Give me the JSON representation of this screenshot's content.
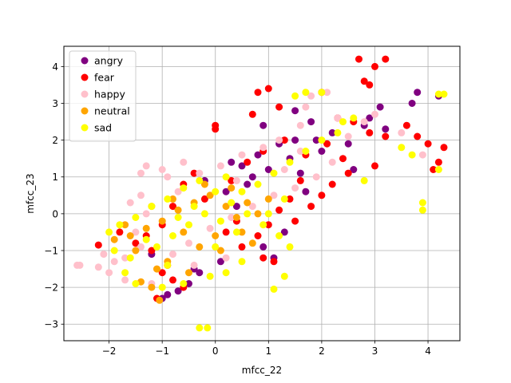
{
  "chart_data": {
    "type": "scatter",
    "title": "",
    "xlabel": "mfcc_22",
    "ylabel": "mfcc_23",
    "xlim": [
      -2.85,
      4.6
    ],
    "ylim": [
      -3.45,
      4.55
    ],
    "xticks": [
      -2,
      -1,
      0,
      1,
      2,
      3,
      4
    ],
    "yticks": [
      -3,
      -2,
      -1,
      0,
      1,
      2,
      3,
      4
    ],
    "grid": true,
    "legend_position": "upper-left",
    "series": [
      {
        "name": "angry",
        "color": "#800080",
        "points": [
          [
            2.8,
            2.4
          ],
          [
            3.1,
            2.9
          ],
          [
            3.8,
            3.3
          ],
          [
            4.2,
            3.2
          ],
          [
            3.7,
            3.0
          ],
          [
            2.9,
            2.6
          ],
          [
            1.5,
            2.8
          ],
          [
            1.8,
            2.5
          ],
          [
            2.2,
            2.2
          ],
          [
            1.2,
            1.9
          ],
          [
            0.8,
            1.6
          ],
          [
            0.5,
            1.3
          ],
          [
            1.0,
            1.2
          ],
          [
            1.4,
            1.5
          ],
          [
            0.6,
            0.8
          ],
          [
            0.2,
            0.6
          ],
          [
            1.6,
            1.1
          ],
          [
            2.0,
            1.7
          ],
          [
            2.5,
            1.9
          ],
          [
            3.2,
            2.3
          ],
          [
            -0.9,
            -2.2
          ],
          [
            -1.0,
            -2.3
          ],
          [
            -0.7,
            -2.1
          ],
          [
            -0.5,
            -1.9
          ],
          [
            -0.3,
            -1.6
          ],
          [
            0.1,
            -1.3
          ],
          [
            -1.2,
            -1.1
          ],
          [
            1.3,
            -0.5
          ],
          [
            0.9,
            -0.9
          ],
          [
            1.1,
            -1.2
          ],
          [
            0.7,
            1.0
          ],
          [
            0.3,
            1.4
          ],
          [
            -0.2,
            0.9
          ],
          [
            0.4,
            0.2
          ],
          [
            1.7,
            0.6
          ],
          [
            2.6,
            1.2
          ],
          [
            1.9,
            2.0
          ],
          [
            0.9,
            2.4
          ],
          [
            1.5,
            2.0
          ],
          [
            -0.4,
            -1.5
          ]
        ]
      },
      {
        "name": "fear",
        "color": "#ff0000",
        "points": [
          [
            2.7,
            4.2
          ],
          [
            3.2,
            4.2
          ],
          [
            3.0,
            4.0
          ],
          [
            2.8,
            3.6
          ],
          [
            2.9,
            3.5
          ],
          [
            1.0,
            3.4
          ],
          [
            0.8,
            3.3
          ],
          [
            0.7,
            2.7
          ],
          [
            1.2,
            2.9
          ],
          [
            2.0,
            3.3
          ],
          [
            2.3,
            2.6
          ],
          [
            2.6,
            2.5
          ],
          [
            2.9,
            2.2
          ],
          [
            3.2,
            2.1
          ],
          [
            3.6,
            2.4
          ],
          [
            3.8,
            2.1
          ],
          [
            4.0,
            1.9
          ],
          [
            4.2,
            1.4
          ],
          [
            4.3,
            1.8
          ],
          [
            4.1,
            1.2
          ],
          [
            3.0,
            1.3
          ],
          [
            2.5,
            1.1
          ],
          [
            2.2,
            0.8
          ],
          [
            2.0,
            0.5
          ],
          [
            1.8,
            0.2
          ],
          [
            1.6,
            0.9
          ],
          [
            1.4,
            0.4
          ],
          [
            1.2,
            0.1
          ],
          [
            1.0,
            -0.3
          ],
          [
            0.8,
            -0.6
          ],
          [
            1.1,
            -1.3
          ],
          [
            0.9,
            -1.2
          ],
          [
            0.5,
            -0.9
          ],
          [
            0.2,
            -0.5
          ],
          [
            0.0,
            2.4
          ],
          [
            0.0,
            2.3
          ],
          [
            -0.4,
            1.1
          ],
          [
            -0.6,
            0.8
          ],
          [
            -0.8,
            0.2
          ],
          [
            -1.0,
            -0.3
          ],
          [
            -1.3,
            -0.6
          ],
          [
            -1.5,
            -0.8
          ],
          [
            -2.2,
            -0.85
          ],
          [
            -1.8,
            -0.5
          ],
          [
            -1.2,
            -1.0
          ],
          [
            -1.0,
            -1.6
          ],
          [
            -0.8,
            -1.8
          ],
          [
            -0.6,
            -2.0
          ],
          [
            -1.1,
            -2.3
          ],
          [
            -0.9,
            -1.4
          ],
          [
            0.3,
            0.9
          ],
          [
            0.6,
            1.4
          ],
          [
            0.9,
            1.7
          ],
          [
            1.3,
            2.0
          ],
          [
            1.7,
            1.6
          ],
          [
            2.1,
            1.9
          ],
          [
            2.4,
            1.5
          ],
          [
            0.4,
            -0.2
          ],
          [
            -0.2,
            0.4
          ],
          [
            1.5,
            -0.2
          ]
        ]
      },
      {
        "name": "happy",
        "color": "#ffc0cb",
        "points": [
          [
            -2.55,
            -1.4
          ],
          [
            -2.6,
            -1.4
          ],
          [
            -2.2,
            -1.45
          ],
          [
            -2.0,
            -1.6
          ],
          [
            -1.9,
            -1.3
          ],
          [
            -2.1,
            -1.1
          ],
          [
            -1.7,
            -1.2
          ],
          [
            -1.4,
            -0.9
          ],
          [
            -1.5,
            -0.5
          ],
          [
            -1.6,
            0.3
          ],
          [
            -1.4,
            0.5
          ],
          [
            -1.3,
            0.0
          ],
          [
            -1.3,
            1.3
          ],
          [
            -1.4,
            1.1
          ],
          [
            -1.0,
            1.2
          ],
          [
            -0.9,
            1.0
          ],
          [
            -0.6,
            1.4
          ],
          [
            -0.3,
            1.1
          ],
          [
            0.1,
            1.3
          ],
          [
            0.5,
            1.6
          ],
          [
            0.9,
            1.8
          ],
          [
            1.2,
            2.0
          ],
          [
            1.6,
            2.4
          ],
          [
            1.8,
            3.2
          ],
          [
            1.7,
            2.9
          ],
          [
            2.1,
            3.3
          ],
          [
            2.3,
            2.6
          ],
          [
            2.5,
            2.1
          ],
          [
            2.8,
            2.5
          ],
          [
            3.0,
            2.7
          ],
          [
            3.5,
            2.2
          ],
          [
            3.9,
            1.6
          ],
          [
            2.2,
            1.4
          ],
          [
            1.9,
            1.0
          ],
          [
            1.5,
            0.7
          ],
          [
            1.1,
            0.5
          ],
          [
            0.7,
            0.2
          ],
          [
            0.3,
            -0.1
          ],
          [
            -0.1,
            -0.4
          ],
          [
            -0.5,
            -0.8
          ],
          [
            -0.8,
            -1.1
          ],
          [
            -1.1,
            -1.5
          ],
          [
            -1.2,
            -1.9
          ],
          [
            -1.7,
            -1.8
          ],
          [
            -0.4,
            -1.4
          ],
          [
            0.2,
            -1.2
          ],
          [
            1.3,
            1.2
          ],
          [
            1.6,
            1.7
          ],
          [
            0.4,
            0.9
          ],
          [
            -0.7,
            0.6
          ]
        ]
      },
      {
        "name": "neutral",
        "color": "#ffa500",
        "points": [
          [
            -1.05,
            -2.35
          ],
          [
            -1.2,
            -2.0
          ],
          [
            -1.4,
            -1.85
          ],
          [
            -1.1,
            -1.5
          ],
          [
            -0.9,
            -1.3
          ],
          [
            -1.5,
            -1.0
          ],
          [
            -1.6,
            -0.6
          ],
          [
            -1.3,
            -0.4
          ],
          [
            -1.0,
            -0.2
          ],
          [
            -0.7,
            0.1
          ],
          [
            -0.4,
            0.3
          ],
          [
            -0.1,
            0.5
          ],
          [
            0.2,
            0.2
          ],
          [
            0.4,
            -0.1
          ],
          [
            0.6,
            0.3
          ],
          [
            0.3,
            0.7
          ],
          [
            0.0,
            -0.6
          ],
          [
            -0.3,
            -0.9
          ],
          [
            -0.6,
            -0.5
          ],
          [
            -0.8,
            0.4
          ],
          [
            0.8,
            0.0
          ],
          [
            1.0,
            0.4
          ],
          [
            0.5,
            -0.5
          ],
          [
            -0.2,
            0.8
          ],
          [
            -1.7,
            -0.3
          ],
          [
            -1.9,
            -0.7
          ],
          [
            -1.2,
            0.2
          ],
          [
            0.1,
            -1.0
          ],
          [
            0.7,
            -0.8
          ],
          [
            -0.5,
            -1.6
          ]
        ]
      },
      {
        "name": "sad",
        "color": "#ffff00",
        "points": [
          [
            -0.3,
            -3.1
          ],
          [
            -0.15,
            -3.1
          ],
          [
            1.1,
            -2.05
          ],
          [
            1.3,
            -1.7
          ],
          [
            0.5,
            -1.3
          ],
          [
            0.2,
            -1.6
          ],
          [
            -0.1,
            -1.7
          ],
          [
            -0.6,
            -1.9
          ],
          [
            -1.0,
            -2.0
          ],
          [
            -1.5,
            -1.9
          ],
          [
            -1.7,
            -1.6
          ],
          [
            -1.9,
            -1.0
          ],
          [
            -2.0,
            -0.5
          ],
          [
            -1.8,
            -0.3
          ],
          [
            -1.5,
            -0.1
          ],
          [
            -1.2,
            0.2
          ],
          [
            -0.9,
            0.4
          ],
          [
            -0.6,
            0.7
          ],
          [
            -0.3,
            0.9
          ],
          [
            0.0,
            0.6
          ],
          [
            0.3,
            0.3
          ],
          [
            0.6,
            0.0
          ],
          [
            0.9,
            -0.3
          ],
          [
            1.2,
            -0.6
          ],
          [
            1.4,
            -0.9
          ],
          [
            0.8,
            0.8
          ],
          [
            1.1,
            1.1
          ],
          [
            1.4,
            1.4
          ],
          [
            1.7,
            1.7
          ],
          [
            2.0,
            2.0
          ],
          [
            2.3,
            2.2
          ],
          [
            2.6,
            2.6
          ],
          [
            1.5,
            3.2
          ],
          [
            1.7,
            3.3
          ],
          [
            2.0,
            3.3
          ],
          [
            2.4,
            2.5
          ],
          [
            2.8,
            0.9
          ],
          [
            3.5,
            1.8
          ],
          [
            3.7,
            1.6
          ],
          [
            3.9,
            0.3
          ],
          [
            3.9,
            0.1
          ],
          [
            4.2,
            1.2
          ],
          [
            4.3,
            3.25
          ],
          [
            4.2,
            3.25
          ],
          [
            -1.1,
            -0.9
          ],
          [
            -0.8,
            -0.6
          ],
          [
            -0.5,
            -0.3
          ],
          [
            -0.2,
            0.0
          ],
          [
            0.1,
            -0.2
          ],
          [
            0.4,
            -0.5
          ],
          [
            -0.4,
            0.2
          ],
          [
            -0.7,
            -0.1
          ],
          [
            -1.3,
            -0.7
          ],
          [
            0.0,
            -0.9
          ],
          [
            0.5,
            0.6
          ],
          [
            1.0,
            0.0
          ],
          [
            -1.6,
            -1.2
          ],
          [
            -0.9,
            -1.4
          ],
          [
            0.2,
            1.0
          ],
          [
            1.3,
            0.4
          ]
        ]
      }
    ]
  }
}
